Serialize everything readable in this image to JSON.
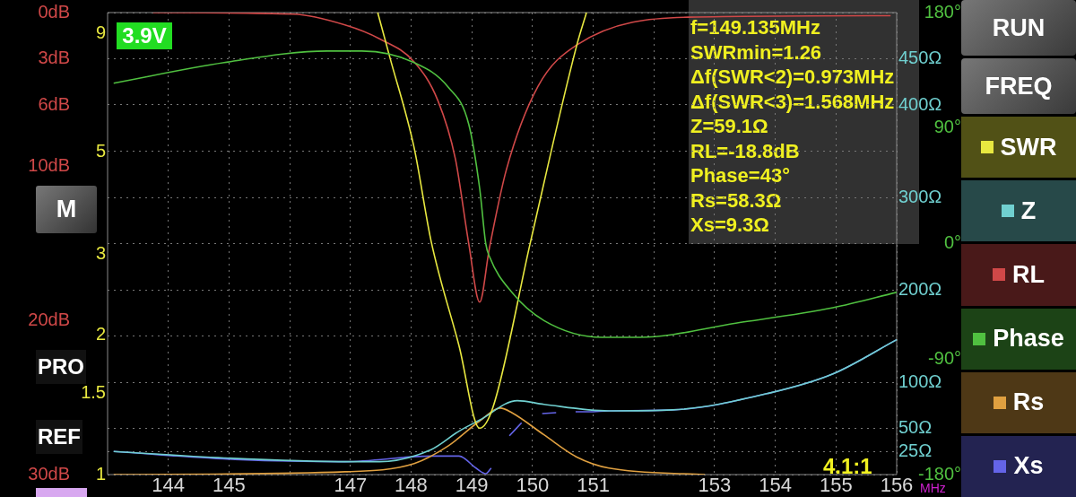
{
  "chart_data": [
    {
      "type": "line",
      "xlabel": "MHz",
      "annotations": [
        "3.9V",
        "f=149.135MHz",
        "SWRmin=1.26",
        "Δf(SWR<2)=0.973MHz",
        "Δf(SWR<3)=1.568MHz",
        "Z=59.1Ω",
        "RL=-18.8dB",
        "Phase=43°",
        "Rs=58.3Ω",
        "Xs=9.3Ω",
        "M",
        "PRO",
        "REF",
        "4.1:1",
        "RUN",
        "FREQ"
      ],
      "xlim": [
        143,
        156
      ],
      "xticks": [
        144,
        145,
        {
          "value": 146,
          "label": null
        },
        147,
        148,
        149,
        150,
        151,
        {
          "value": 152,
          "label": null
        },
        153,
        154,
        155,
        156
      ],
      "ylim": [
        30,
        0
      ],
      "yticks": [
        {
          "value": 0,
          "label": "0dB"
        },
        {
          "value": 3,
          "label": "3dB"
        },
        {
          "value": 6,
          "label": "6dB"
        },
        {
          "value": 10,
          "label": "10dB"
        },
        {
          "value": 20,
          "label": "20dB"
        },
        {
          "value": 30,
          "label": "30dB"
        }
      ],
      "y2lim": [
        1,
        10
      ],
      "y2ticks": [
        1,
        1.5,
        2,
        3,
        5,
        9
      ],
      "y3lim": [
        0,
        500
      ],
      "y3ticks": [
        {
          "value": 0,
          "label": null
        },
        {
          "value": 25,
          "label": "25Ω"
        },
        {
          "value": 50,
          "label": "50Ω"
        },
        {
          "value": 100,
          "label": "100Ω"
        },
        {
          "value": 150,
          "label": null
        },
        {
          "value": 200,
          "label": "200Ω"
        },
        {
          "value": 250,
          "label": null
        },
        {
          "value": 300,
          "label": "300Ω"
        },
        {
          "value": 350,
          "label": null
        },
        {
          "value": 400,
          "label": "400Ω"
        },
        {
          "value": 450,
          "label": "450Ω"
        },
        {
          "value": 500,
          "label": null
        }
      ],
      "log": "y2",
      "grid": true,
      "legend": "right",
      "series": [
        {
          "name": "SWR",
          "color": "#e8e840",
          "axis": "y2",
          "x": [
            147.45,
            147.65,
            148.05,
            148.33,
            148.79,
            149.13,
            149.35,
            149.97,
            150.73,
            150.89
          ],
          "values": [
            10,
            8,
            5.1,
            3.2,
            1.9,
            1.26,
            1.4,
            3.2,
            8.5,
            10
          ]
        },
        {
          "name": "Z",
          "color": "#70d0d0",
          "axis": "y3",
          "x": [
            143.1,
            144.92,
            146.99,
            147.48,
            148.33,
            148.79,
            149.13,
            149.75,
            150.19,
            151.26,
            152.31,
            153.89,
            154.95,
            156
          ],
          "values": [
            25,
            18,
            14,
            14,
            27,
            47,
            59,
            80,
            76,
            69,
            70,
            88,
            109,
            146
          ]
        },
        {
          "name": "RL",
          "color": "#d04848",
          "x": [
            143.75,
            146.06,
            146.91,
            147.48,
            148.05,
            148.44,
            148.73,
            148.95,
            149.13,
            149.29,
            149.57,
            150.09,
            150.73,
            152.57,
            155.9
          ],
          "values": [
            0,
            0.1,
            0.8,
            1.7,
            3.2,
            5.7,
            9.5,
            15,
            18.8,
            15.3,
            10.2,
            4.8,
            2.1,
            0.3,
            0.2
          ]
        },
        {
          "name": "Rs",
          "color": "#e0a040",
          "axis": "y3",
          "x": [
            143.1,
            146.91,
            148.05,
            148.61,
            149.13,
            149.47,
            149.66,
            150.19,
            150.73,
            151.26,
            152.84
          ],
          "values": [
            0,
            3,
            12,
            31,
            58,
            72,
            67,
            43,
            19,
            7,
            0
          ]
        },
        {
          "name": "Xs",
          "color": "#6464e8",
          "axis": "y3",
          "x": [
            143.1,
            145.2,
            146.91,
            148.33,
            148.79,
            149.07,
            149.23,
            149.32,
            149.4,
            149.62,
            149.82,
            149.9,
            150.16,
            150.39,
            150.5,
            150.71,
            150.93,
            151.26,
            152.31,
            153.89,
            154.95,
            156
          ],
          "values": [
            25,
            16,
            14,
            20,
            20,
            7,
            1,
            7,
            null,
            42,
            56,
            null,
            66,
            67,
            null,
            68,
            68,
            69,
            70,
            88,
            109,
            146
          ]
        }
      ]
    },
    {
      "type": "line",
      "xlim": [
        143,
        156
      ],
      "ylim": [
        -180,
        180
      ],
      "yticks": [
        {
          "value": 180,
          "label": "180°"
        },
        {
          "value": 90,
          "label": "90°"
        },
        {
          "value": 0,
          "label": "0°"
        },
        {
          "value": -90,
          "label": "-90°"
        },
        {
          "value": -180,
          "label": "-180°"
        }
      ],
      "tick_labels": "y",
      "legend": "right",
      "series": [
        {
          "name": "Phase",
          "color": "#50c040",
          "x": [
            143.1,
            144.92,
            146.62,
            147.19,
            148.05,
            148.61,
            148.95,
            149.13,
            149.23,
            149.29,
            149.66,
            150.19,
            151.14,
            151.77,
            153.35,
            154.95,
            156
          ],
          "values": [
            125,
            141,
            150,
            150,
            141,
            122,
            93,
            43,
            0,
            -10,
            -38,
            -60,
            -73,
            -73,
            -62,
            -50,
            -38
          ]
        }
      ]
    }
  ]
}
